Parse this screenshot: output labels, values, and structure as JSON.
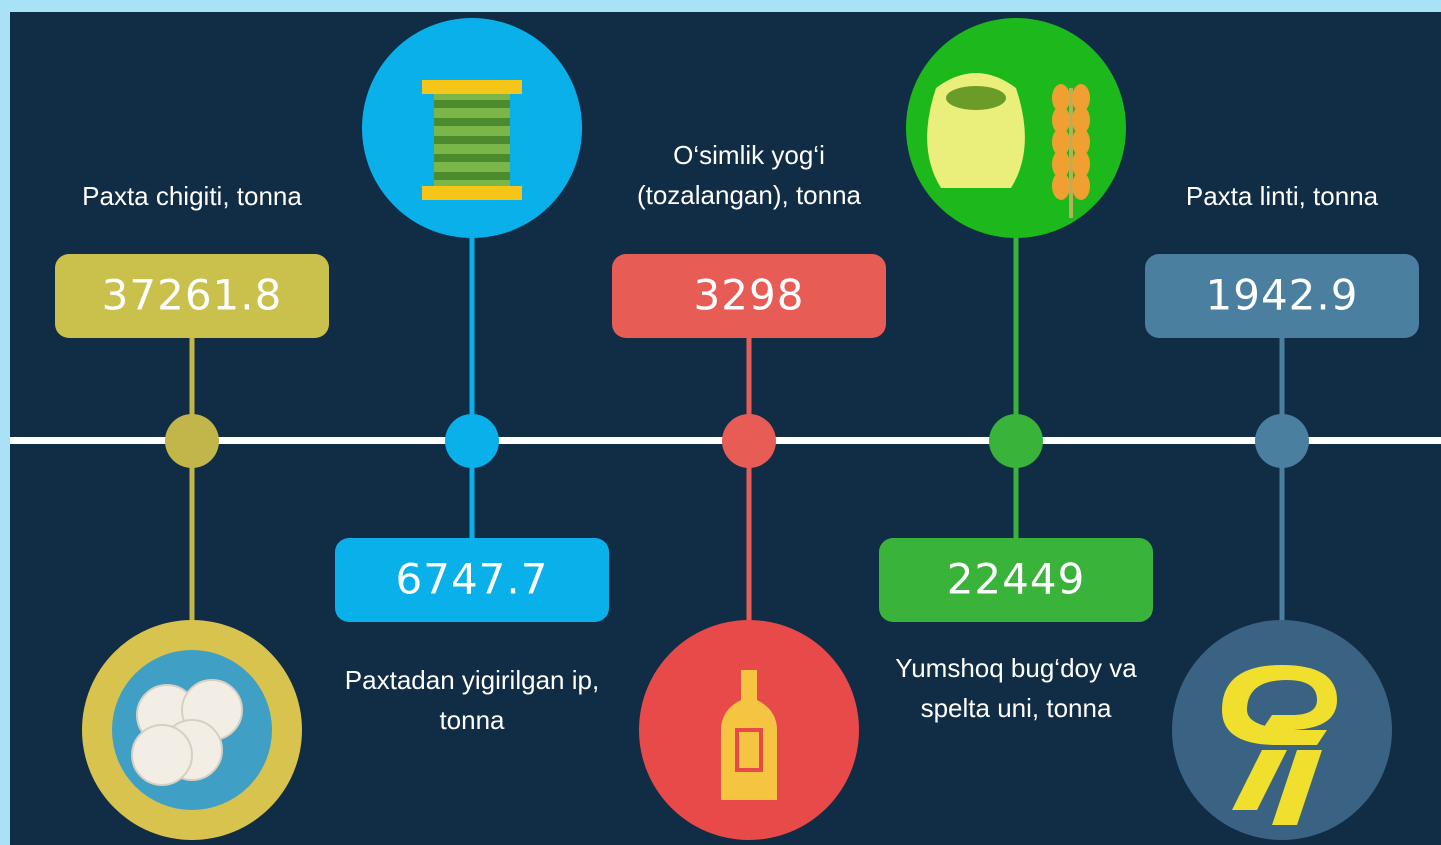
{
  "items": [
    {
      "label": [
        "Paxta chigiti, tonna"
      ],
      "value": 37261.8
    },
    {
      "label": [
        "Paxtadan yigirilgan ip,",
        "tonna"
      ],
      "value": 6747.7
    },
    {
      "label": [
        "O‘simlik yog‘i",
        "(tozalangan), tonna"
      ],
      "value": 3298
    },
    {
      "label": [
        "Yumshoq bug‘doy va",
        "spelta uni, tonna"
      ],
      "value": 22449
    },
    {
      "label": [
        "Paxta linti, tonna"
      ],
      "value": 1942.9
    }
  ]
}
